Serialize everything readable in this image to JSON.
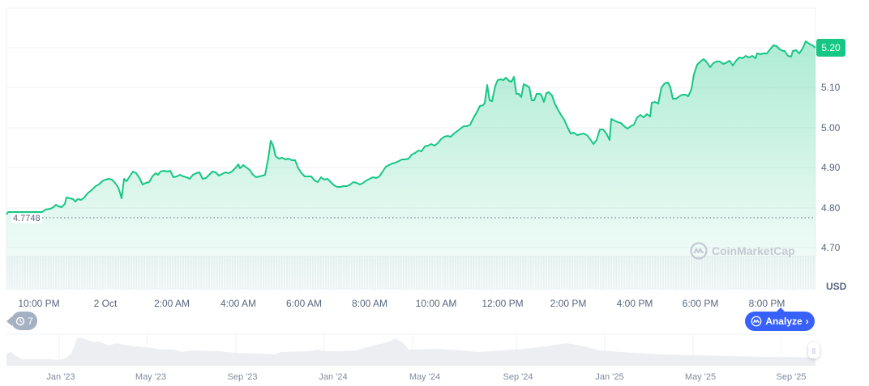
{
  "chart_data": {
    "type": "area",
    "title": "",
    "currency": "USD",
    "current_price": "5.20",
    "open_reference": "4.7748",
    "ylabel": "USD",
    "yticks": [
      "5.20",
      "5.10",
      "5.00",
      "4.90",
      "4.80",
      "4.70"
    ],
    "ylim": [
      4.65,
      5.3
    ],
    "xticks": [
      "10:00 PM",
      "2 Oct",
      "2:00 AM",
      "4:00 AM",
      "6:00 AM",
      "8:00 AM",
      "10:00 AM",
      "12:00 PM",
      "2:00 PM",
      "4:00 PM",
      "6:00 PM",
      "8:00 PM"
    ],
    "grid": true,
    "line_color": "#16c784",
    "series": [
      {
        "name": "Price",
        "x": [
          "21:00",
          "22:00",
          "23:00",
          "00:00",
          "01:00",
          "02:00",
          "03:00",
          "04:00",
          "05:00",
          "05:30",
          "06:00",
          "07:00",
          "08:00",
          "09:00",
          "10:00",
          "11:00",
          "11:30",
          "12:00",
          "12:30",
          "13:00",
          "14:00",
          "14:30",
          "15:00",
          "16:00",
          "17:00",
          "17:30",
          "18:00",
          "19:00",
          "20:00",
          "21:00",
          "21:30"
        ],
        "values": [
          4.78,
          4.79,
          4.81,
          4.84,
          4.88,
          4.89,
          4.88,
          4.89,
          4.88,
          4.97,
          4.92,
          4.88,
          4.85,
          4.87,
          4.93,
          4.97,
          5.01,
          5.06,
          5.12,
          5.08,
          4.99,
          4.96,
          5.0,
          5.04,
          5.09,
          5.16,
          5.17,
          5.18,
          5.19,
          5.2,
          5.2
        ]
      }
    ],
    "volume_series": "uniform light-gray bars along bottom"
  },
  "axis": {
    "y_labels": [
      "5.20",
      "5.10",
      "5.00",
      "4.90",
      "4.80",
      "4.70"
    ],
    "unit": "USD"
  },
  "price_tag": "5.20",
  "open_label": "4.7748",
  "x_labels": [
    "10:00 PM",
    "2 Oct",
    "2:00 AM",
    "4:00 AM",
    "6:00 AM",
    "8:00 AM",
    "10:00 AM",
    "12:00 PM",
    "2:00 PM",
    "4:00 PM",
    "6:00 PM",
    "8:00 PM"
  ],
  "navigator": {
    "labels": [
      "Jan '23",
      "May '23",
      "Sep '23",
      "Jan '24",
      "May '24",
      "Sep '24",
      "Jan '25",
      "May '25",
      "Sep '25"
    ]
  },
  "history_badge": {
    "icon": "history-icon",
    "count": "7"
  },
  "analyze_button": {
    "icon": "cmc-logo-icon",
    "label": "Analyze",
    "chevron": "›"
  },
  "watermark": {
    "icon": "cmc-logo-icon",
    "text": "CoinMarketCap"
  },
  "colors": {
    "up": "#16c784",
    "analyze": "#3861fb",
    "badge": "#a6b0c3"
  }
}
